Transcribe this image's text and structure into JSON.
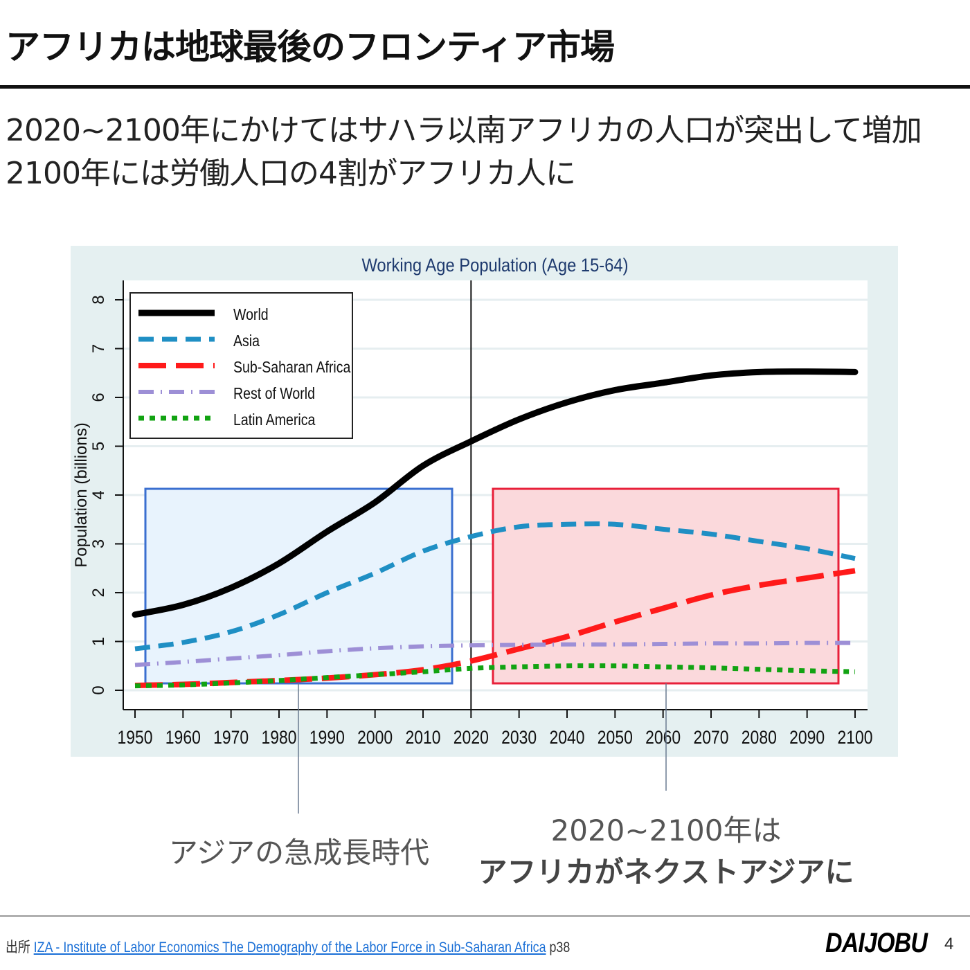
{
  "slide": {
    "title": "アフリカは地球最後のフロンティア市場",
    "subtitle_lines": [
      "2020~2100年にかけてはサハラ以南アフリカの人口が突出して増加",
      "2100年には労働人口の4割がアフリカ人に"
    ],
    "annotation_left": "アジアの急成長時代",
    "annotation_right_line1": "2020~2100年は",
    "annotation_right_line2": "アフリカがネクストアジアに",
    "source_label": "出所",
    "source_link": "IZA - Institute of Labor Economics  The Demography of the Labor Force in Sub-Saharan Africa",
    "source_page": "p38",
    "logo": "DAIJOBU",
    "page_number": "4",
    "colors": {
      "highlight_left": "#3a6fd0",
      "highlight_right": "#e8203a"
    }
  },
  "chart_data": {
    "type": "line",
    "title": "Working Age Population (Age 15-64)",
    "xlabel": "",
    "ylabel": "Population (billions)",
    "xlim": [
      1950,
      2100
    ],
    "ylim": [
      0,
      8
    ],
    "xticks": [
      1950,
      1960,
      1970,
      1980,
      1990,
      2000,
      2010,
      2020,
      2030,
      2040,
      2050,
      2060,
      2070,
      2080,
      2090,
      2100
    ],
    "yticks": [
      0,
      1,
      2,
      3,
      4,
      5,
      6,
      7,
      8
    ],
    "grid": true,
    "legend_position": "top-left",
    "reference_line_x": 2020,
    "x": [
      1950,
      1960,
      1970,
      1980,
      1990,
      2000,
      2010,
      2020,
      2030,
      2040,
      2050,
      2060,
      2070,
      2080,
      2090,
      2100
    ],
    "series": [
      {
        "name": "World",
        "color": "#000000",
        "style": "solid",
        "values": [
          1.55,
          1.75,
          2.1,
          2.6,
          3.25,
          3.85,
          4.6,
          5.1,
          5.55,
          5.9,
          6.15,
          6.3,
          6.45,
          6.52,
          6.53,
          6.52
        ]
      },
      {
        "name": "Asia",
        "color": "#1f8fc4",
        "style": "dash",
        "values": [
          0.85,
          0.98,
          1.2,
          1.55,
          2.0,
          2.4,
          2.85,
          3.15,
          3.35,
          3.4,
          3.4,
          3.3,
          3.2,
          3.05,
          2.9,
          2.7
        ]
      },
      {
        "name": "Sub-Saharan Africa",
        "color": "#ff1a1a",
        "style": "longdash",
        "values": [
          0.1,
          0.12,
          0.16,
          0.2,
          0.25,
          0.32,
          0.42,
          0.6,
          0.85,
          1.1,
          1.4,
          1.68,
          1.95,
          2.15,
          2.3,
          2.45
        ]
      },
      {
        "name": "Rest of World",
        "color": "#9d8fd6",
        "style": "dashdot",
        "values": [
          0.52,
          0.58,
          0.65,
          0.72,
          0.8,
          0.86,
          0.9,
          0.92,
          0.93,
          0.94,
          0.94,
          0.95,
          0.96,
          0.96,
          0.97,
          0.97
        ]
      },
      {
        "name": "Latin America",
        "color": "#12a312",
        "style": "dot",
        "values": [
          0.09,
          0.11,
          0.15,
          0.2,
          0.26,
          0.32,
          0.38,
          0.45,
          0.48,
          0.5,
          0.5,
          0.48,
          0.46,
          0.43,
          0.4,
          0.38
        ]
      }
    ]
  }
}
